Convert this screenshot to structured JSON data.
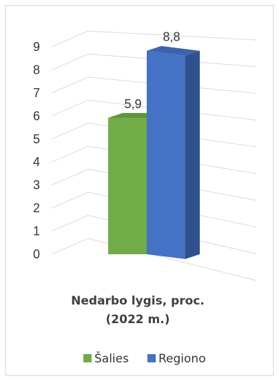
{
  "chart_data": {
    "type": "bar",
    "title_lines": [
      "Nedarbo lygis, proc.",
      "(2022 m.)"
    ],
    "categories": [
      ""
    ],
    "series": [
      {
        "name": "Šalies",
        "values": [
          5.9
        ],
        "color": "#70ad47",
        "label": "5,9"
      },
      {
        "name": "Regiono",
        "values": [
          8.8
        ],
        "color": "#4472c4",
        "label": "8,8"
      }
    ],
    "y_ticks": [
      "0",
      "1",
      "2",
      "3",
      "4",
      "5",
      "6",
      "7",
      "8",
      "9"
    ],
    "ylim": [
      0,
      9
    ],
    "grid": true,
    "legend_position": "bottom",
    "projection": "3d-perspective"
  }
}
